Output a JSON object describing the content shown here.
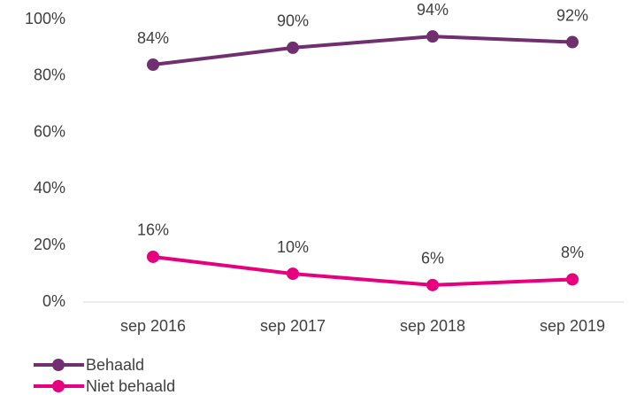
{
  "chart_data": {
    "type": "line",
    "categories": [
      "sep 2016",
      "sep 2017",
      "sep 2018",
      "sep 2019"
    ],
    "series": [
      {
        "name": "Behaald",
        "color": "#702f6e",
        "values": [
          84,
          90,
          94,
          92
        ],
        "value_labels": [
          "84%",
          "90%",
          "94%",
          "92%"
        ]
      },
      {
        "name": "Niet behaald",
        "color": "#e6007e",
        "values": [
          16,
          10,
          6,
          8
        ],
        "value_labels": [
          "16%",
          "10%",
          "6%",
          "8%"
        ]
      }
    ],
    "ylim": [
      0,
      100
    ],
    "yticks": [
      {
        "value": 0,
        "label": "0%"
      },
      {
        "value": 20,
        "label": "20%"
      },
      {
        "value": 40,
        "label": "40%"
      },
      {
        "value": 60,
        "label": "60%"
      },
      {
        "value": 80,
        "label": "80%"
      },
      {
        "value": 100,
        "label": "100%"
      }
    ],
    "grid": false,
    "legend": "bottom-left"
  }
}
